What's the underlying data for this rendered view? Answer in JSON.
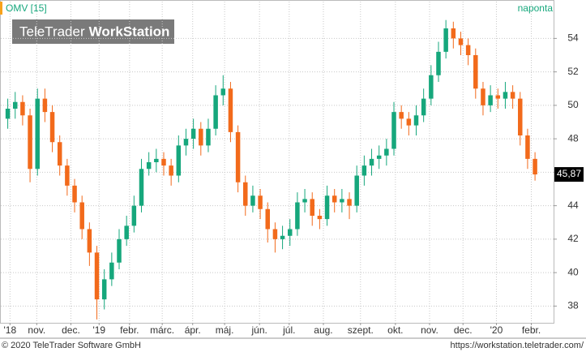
{
  "header": {
    "symbol": "OMV [15]",
    "interval": "naponta",
    "logo": {
      "brand": "TeleTrader",
      "product": "WorkStation"
    }
  },
  "chart_data": {
    "type": "candlestick",
    "x": [
      0,
      1,
      2,
      3,
      4,
      5,
      6,
      7,
      8,
      9,
      10,
      11,
      12,
      13,
      14,
      15,
      16,
      17,
      18,
      19,
      20,
      21,
      22,
      23,
      24,
      25,
      26,
      27,
      28,
      29,
      30,
      31,
      32,
      33,
      34,
      35,
      36,
      37,
      38,
      39,
      40,
      41,
      42,
      43,
      44,
      45,
      46,
      47,
      48,
      49,
      50,
      51,
      52,
      53,
      54,
      55,
      56,
      57,
      58,
      59,
      60,
      61,
      62,
      63,
      64,
      65,
      66,
      67,
      68,
      69,
      70,
      71
    ],
    "open": [
      49.2,
      49.8,
      50.2,
      49.4,
      46.2,
      50.4,
      49.6,
      47.8,
      46.4,
      45.2,
      44.2,
      42.6,
      41.2,
      38.4,
      39.6,
      40.6,
      42.0,
      42.8,
      44.0,
      46.2,
      46.6,
      46.8,
      46.4,
      45.8,
      47.6,
      48.0,
      48.6,
      47.6,
      48.6,
      50.6,
      51.0,
      48.4,
      45.4,
      44.0,
      44.6,
      43.8,
      42.6,
      42.0,
      42.2,
      42.6,
      44.2,
      44.4,
      43.4,
      43.2,
      44.6,
      44.2,
      44.4,
      44.0,
      45.8,
      46.4,
      46.8,
      47.0,
      47.4,
      49.6,
      49.2,
      48.8,
      49.4,
      50.4,
      51.8,
      53.2,
      54.6,
      54.0,
      53.6,
      53.0,
      51.0,
      50.0,
      50.6,
      50.4,
      50.8,
      50.4,
      48.2,
      46.8
    ],
    "high": [
      50.4,
      50.8,
      50.6,
      49.8,
      51.0,
      51.0,
      50.0,
      48.2,
      46.8,
      45.6,
      44.6,
      43.0,
      41.6,
      40.2,
      41.2,
      42.6,
      43.4,
      44.6,
      46.8,
      47.2,
      47.4,
      47.2,
      46.8,
      48.2,
      48.6,
      49.2,
      49.0,
      49.2,
      51.2,
      51.8,
      51.4,
      48.8,
      45.8,
      45.2,
      45.0,
      44.2,
      43.0,
      42.8,
      43.2,
      44.8,
      45.0,
      44.8,
      43.8,
      45.2,
      45.0,
      45.0,
      44.8,
      46.4,
      47.0,
      47.4,
      47.6,
      48.0,
      50.2,
      50.0,
      49.6,
      50.0,
      51.0,
      52.4,
      53.8,
      55.1,
      55.0,
      54.4,
      54.0,
      53.4,
      51.4,
      51.2,
      51.0,
      51.4,
      51.2,
      50.8,
      48.6,
      47.2
    ],
    "low": [
      48.6,
      49.2,
      48.8,
      45.4,
      45.8,
      49.0,
      47.2,
      45.8,
      44.6,
      43.6,
      42.0,
      40.4,
      37.2,
      37.8,
      39.2,
      40.2,
      41.6,
      42.4,
      43.6,
      45.8,
      46.0,
      45.8,
      45.2,
      45.4,
      47.0,
      47.4,
      47.0,
      47.2,
      48.2,
      50.0,
      47.8,
      44.8,
      43.4,
      43.6,
      43.2,
      41.8,
      41.2,
      41.4,
      41.6,
      42.2,
      43.6,
      42.8,
      42.6,
      42.8,
      43.6,
      43.6,
      43.2,
      43.6,
      45.2,
      45.8,
      46.2,
      46.4,
      47.0,
      48.6,
      48.2,
      48.2,
      49.0,
      50.0,
      51.4,
      52.8,
      53.4,
      53.0,
      52.4,
      50.4,
      49.4,
      49.6,
      49.8,
      49.8,
      49.8,
      47.6,
      46.2,
      45.5
    ],
    "close": [
      49.8,
      50.2,
      49.4,
      46.2,
      50.4,
      49.6,
      47.8,
      46.4,
      45.2,
      44.2,
      42.6,
      41.2,
      38.4,
      39.6,
      40.6,
      42.0,
      42.8,
      44.0,
      46.2,
      46.6,
      46.8,
      46.4,
      45.8,
      47.6,
      48.0,
      48.6,
      47.6,
      48.6,
      50.6,
      51.0,
      48.4,
      45.4,
      44.0,
      44.6,
      43.8,
      42.6,
      42.0,
      42.2,
      42.6,
      44.2,
      44.4,
      43.4,
      43.2,
      44.6,
      44.2,
      44.4,
      44.0,
      45.8,
      46.4,
      46.8,
      47.0,
      47.4,
      49.6,
      49.2,
      48.8,
      49.4,
      50.4,
      51.8,
      53.2,
      54.6,
      54.0,
      53.6,
      53.0,
      51.0,
      50.0,
      50.6,
      50.4,
      50.8,
      50.4,
      48.2,
      46.8,
      45.87
    ],
    "up_color": "#16a77c",
    "down_color": "#f26a1b",
    "xlim": [
      -0.5,
      73.5
    ],
    "xticks": [
      {
        "value": 0.3,
        "label": "'18"
      },
      {
        "value": 3.9,
        "label": "nov."
      },
      {
        "value": 8.5,
        "label": "dec."
      },
      {
        "value": 12.3,
        "label": "'19"
      },
      {
        "value": 16.4,
        "label": "febr."
      },
      {
        "value": 20.8,
        "label": "márc."
      },
      {
        "value": 24.9,
        "label": "ápr."
      },
      {
        "value": 29.2,
        "label": "máj."
      },
      {
        "value": 33.9,
        "label": "jún."
      },
      {
        "value": 37.9,
        "label": "júl."
      },
      {
        "value": 42.5,
        "label": "aug."
      },
      {
        "value": 47.5,
        "label": "szept."
      },
      {
        "value": 52.2,
        "label": "okt."
      },
      {
        "value": 56.8,
        "label": "nov."
      },
      {
        "value": 61.3,
        "label": "dec."
      },
      {
        "value": 65.8,
        "label": "'20"
      },
      {
        "value": 70.5,
        "label": "febr."
      }
    ],
    "ylim": [
      37,
      56.2
    ],
    "yticks": [
      38,
      40,
      42,
      44,
      46,
      48,
      50,
      52,
      54
    ],
    "grid": true,
    "last_price": {
      "value": 45.87,
      "label": "45,87"
    }
  },
  "footer": {
    "copyright": "© 2020 TeleTrader Software GmbH",
    "url": "https://workstation.teletrader.com/"
  }
}
